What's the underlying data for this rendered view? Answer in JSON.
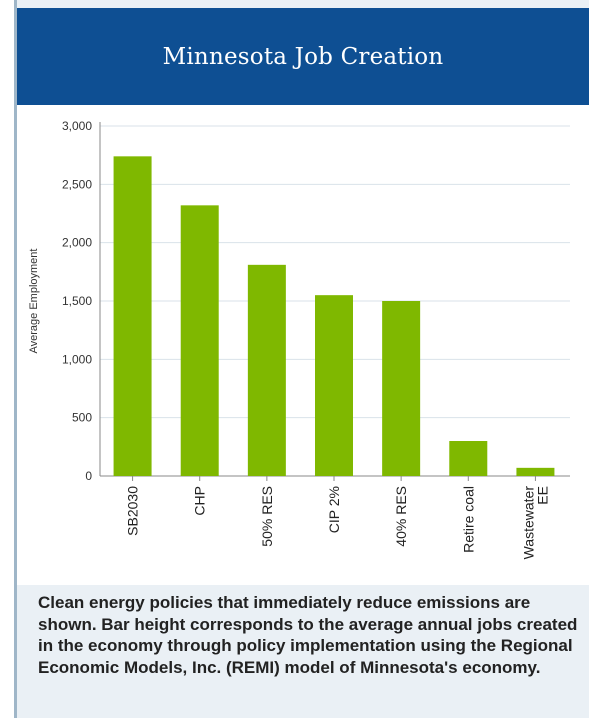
{
  "chart_data": {
    "type": "bar",
    "title": "Minnesota Job Creation",
    "ylabel": "Average Employment",
    "xlabel": "",
    "categories": [
      "SB2030",
      "CHP",
      "50% RES",
      "CIP 2%",
      "40% RES",
      "Retire coal",
      "Wastewater EE"
    ],
    "values": [
      2740,
      2320,
      1810,
      1550,
      1500,
      300,
      70
    ],
    "ylim": [
      0,
      3000
    ],
    "yticks": [
      0,
      500,
      1000,
      1500,
      2000,
      2500,
      3000
    ],
    "ytick_labels": [
      "0",
      "500",
      "1,000",
      "1,500",
      "2,000",
      "2,500",
      "3,000"
    ],
    "grid": true,
    "bar_color": "#7fb800"
  },
  "caption": "Clean energy policies that immediately reduce emissions are shown. Bar height corresponds to the average annual jobs created in the economy through policy implementation using the Regional Economic Models, Inc. (REMI) model of Minnesota's economy."
}
